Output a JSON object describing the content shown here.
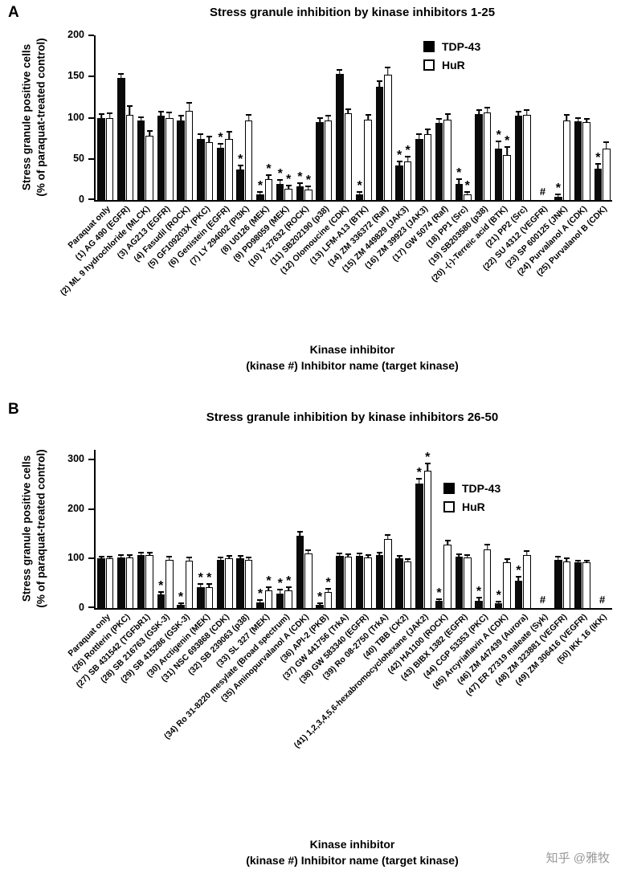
{
  "watermark": "知乎 @雅牧",
  "chart_data": [
    {
      "type": "bar",
      "panel": "A",
      "title": "Stress granule inhibition by kinase inhibitors 1-25",
      "ylabel_line1": "Stress granule positive cells",
      "ylabel_line2": "(% of paraquat-treated control)",
      "xlabel_line1": "Kinase inhibitor",
      "xlabel_line2": "(kinase #) Inhibitor name (target kinase)",
      "ylim": [
        0,
        200
      ],
      "yticks": [
        0,
        50,
        100,
        150,
        200
      ],
      "grid": false,
      "legend_position": "top-right-inside",
      "series": [
        {
          "name": "TDP-43",
          "fill": "#000000"
        },
        {
          "name": "HuR",
          "fill": "#ffffff"
        }
      ],
      "groups": [
        {
          "label": "Paraquat only",
          "values": [
            100,
            100
          ],
          "errors": [
            3,
            4
          ],
          "sig": [
            "",
            ""
          ]
        },
        {
          "label": "(1) AG 490 (EGFR)",
          "values": [
            148,
            103
          ],
          "errors": [
            4,
            10
          ],
          "sig": [
            "",
            ""
          ]
        },
        {
          "label": "(2) ML 9 hydrochloride (MLCK)",
          "values": [
            97,
            78
          ],
          "errors": [
            3,
            5
          ],
          "sig": [
            "",
            ""
          ]
        },
        {
          "label": "(3) AG213 (EGFR)",
          "values": [
            102,
            100
          ],
          "errors": [
            4,
            5
          ],
          "sig": [
            "",
            ""
          ]
        },
        {
          "label": "(4) Fasudil (ROCK)",
          "values": [
            97,
            108
          ],
          "errors": [
            4,
            9
          ],
          "sig": [
            "",
            ""
          ]
        },
        {
          "label": "(5) GF109203X (PKC)",
          "values": [
            74,
            70
          ],
          "errors": [
            5,
            6
          ],
          "sig": [
            "",
            ""
          ]
        },
        {
          "label": "(6) Genistein (EGFR)",
          "values": [
            63,
            74
          ],
          "errors": [
            4,
            8
          ],
          "sig": [
            "*",
            ""
          ]
        },
        {
          "label": "(7) LY 294002 (PI3K)",
          "values": [
            37,
            97
          ],
          "errors": [
            4,
            5
          ],
          "sig": [
            "*",
            ""
          ]
        },
        {
          "label": "(8) U0126 (MEK)",
          "values": [
            7,
            25
          ],
          "errors": [
            2,
            4
          ],
          "sig": [
            "*",
            "*"
          ]
        },
        {
          "label": "(9) PD98059 (MEK)",
          "values": [
            20,
            14
          ],
          "errors": [
            3,
            3
          ],
          "sig": [
            "*",
            "*"
          ]
        },
        {
          "label": "(10) Y-27632 (ROCK)",
          "values": [
            17,
            13
          ],
          "errors": [
            3,
            3
          ],
          "sig": [
            "*",
            "*"
          ]
        },
        {
          "label": "(11) SB202190 (p38)",
          "values": [
            95,
            97
          ],
          "errors": [
            4,
            4
          ],
          "sig": [
            "",
            ""
          ]
        },
        {
          "label": "(12) Olomoucine (CDK)",
          "values": [
            153,
            105
          ],
          "errors": [
            4,
            4
          ],
          "sig": [
            "",
            ""
          ]
        },
        {
          "label": "(13) LFM-A13 (BTK)",
          "values": [
            7,
            98
          ],
          "errors": [
            2,
            4
          ],
          "sig": [
            "*",
            ""
          ]
        },
        {
          "label": "(14) ZM 336372 (Raf)",
          "values": [
            138,
            152
          ],
          "errors": [
            5,
            8
          ],
          "sig": [
            "",
            ""
          ]
        },
        {
          "label": "(15) ZM 449829 (JAK3)",
          "values": [
            42,
            47
          ],
          "errors": [
            4,
            5
          ],
          "sig": [
            "*",
            "*"
          ]
        },
        {
          "label": "(16) ZM 39923 (JAK3)",
          "values": [
            74,
            80
          ],
          "errors": [
            5,
            5
          ],
          "sig": [
            "",
            ""
          ]
        },
        {
          "label": "(17) GW 5074 (Raf)",
          "values": [
            94,
            98
          ],
          "errors": [
            4,
            5
          ],
          "sig": [
            "",
            ""
          ]
        },
        {
          "label": "(18) PP1 (Src)",
          "values": [
            20,
            7
          ],
          "errors": [
            4,
            2
          ],
          "sig": [
            "*",
            "*"
          ]
        },
        {
          "label": "(19) SB203580 (p38)",
          "values": [
            104,
            106
          ],
          "errors": [
            4,
            5
          ],
          "sig": [
            "",
            ""
          ]
        },
        {
          "label": "(20) -(-)-Terreic acid (BTK)",
          "values": [
            62,
            55
          ],
          "errors": [
            8,
            8
          ],
          "sig": [
            "*",
            "*"
          ]
        },
        {
          "label": "(21) PP2 (Src)",
          "values": [
            102,
            103
          ],
          "errors": [
            4,
            5
          ],
          "sig": [
            "",
            ""
          ]
        },
        {
          "label": "(22) SU 4312 (VEGFR)",
          "na": "#"
        },
        {
          "label": "(23) SP 600125 (JNK)",
          "values": [
            4,
            97
          ],
          "errors": [
            2,
            5
          ],
          "sig": [
            "*",
            ""
          ]
        },
        {
          "label": "(24) Purvalanol A (CDK)",
          "values": [
            96,
            95
          ],
          "errors": [
            3,
            3
          ],
          "sig": [
            "",
            ""
          ]
        },
        {
          "label": "(25) Purvalanol B (CDK)",
          "values": [
            38,
            62
          ],
          "errors": [
            5,
            7
          ],
          "sig": [
            "*",
            ""
          ]
        }
      ]
    },
    {
      "type": "bar",
      "panel": "B",
      "title": "Stress granule inhibition by kinase inhibitors 26-50",
      "ylabel_line1": "Stress granule positive cells",
      "ylabel_line2": "(% of paraquat-treated control)",
      "xlabel_line1": "Kinase inhibitor",
      "xlabel_line2": "(kinase #) Inhibitor name (target kinase)",
      "ylim": [
        0,
        320
      ],
      "yticks": [
        0,
        100,
        200,
        300
      ],
      "grid": false,
      "legend_position": "center-right-inside",
      "series": [
        {
          "name": "TDP-43",
          "fill": "#000000"
        },
        {
          "name": "HuR",
          "fill": "#ffffff"
        }
      ],
      "groups": [
        {
          "label": "Paraquat only",
          "values": [
            100,
            100
          ],
          "errors": [
            3,
            3
          ],
          "sig": [
            "",
            ""
          ]
        },
        {
          "label": "(26) Rottlerin (PKC)",
          "values": [
            102,
            102
          ],
          "errors": [
            3,
            4
          ],
          "sig": [
            "",
            ""
          ]
        },
        {
          "label": "(27) SB 431542 (TGFbR1)",
          "values": [
            108,
            107
          ],
          "errors": [
            3,
            3
          ],
          "sig": [
            "",
            ""
          ]
        },
        {
          "label": "(28) SB 216763 (GSK-3)",
          "values": [
            27,
            98
          ],
          "errors": [
            4,
            5
          ],
          "sig": [
            "*",
            ""
          ]
        },
        {
          "label": "(29) SB 415286 (GSK-3)",
          "values": [
            6,
            96
          ],
          "errors": [
            2,
            5
          ],
          "sig": [
            "*",
            ""
          ]
        },
        {
          "label": "(30) Arctigenin (MEK)",
          "values": [
            42,
            42
          ],
          "errors": [
            5,
            5
          ],
          "sig": [
            "*",
            "*"
          ]
        },
        {
          "label": "(31) NSC 693868 (CDK)",
          "values": [
            97,
            100
          ],
          "errors": [
            4,
            4
          ],
          "sig": [
            "",
            ""
          ]
        },
        {
          "label": "(32) SB 239063 (p38)",
          "values": [
            100,
            97
          ],
          "errors": [
            4,
            4
          ],
          "sig": [
            "",
            ""
          ]
        },
        {
          "label": "(33) SL 327 (MEK)",
          "values": [
            12,
            35
          ],
          "errors": [
            3,
            5
          ],
          "sig": [
            "*",
            "*"
          ]
        },
        {
          "label": "(34) Ro 31-8220 mesylate (Broad spectrum)",
          "values": [
            30,
            35
          ],
          "errors": [
            5,
            5
          ],
          "sig": [
            "*",
            "*"
          ]
        },
        {
          "label": "(35) Aminopurvalanol A (CDK)",
          "values": [
            147,
            110
          ],
          "errors": [
            6,
            5
          ],
          "sig": [
            "",
            ""
          ]
        },
        {
          "label": "(36) API-2 (PKB)",
          "values": [
            6,
            32
          ],
          "errors": [
            2,
            5
          ],
          "sig": [
            "*",
            "*"
          ]
        },
        {
          "label": "(37) GW 441756 (TrkA)",
          "values": [
            105,
            104
          ],
          "errors": [
            4,
            4
          ],
          "sig": [
            "",
            ""
          ]
        },
        {
          "label": "(38) GW 583340 (EGFR)",
          "values": [
            105,
            102
          ],
          "errors": [
            4,
            4
          ],
          "sig": [
            "",
            ""
          ]
        },
        {
          "label": "(39) Ro 08-2750 (TrkA)",
          "values": [
            107,
            140
          ],
          "errors": [
            4,
            7
          ],
          "sig": [
            "",
            ""
          ]
        },
        {
          "label": "(40) TBB (CK2)",
          "values": [
            100,
            94
          ],
          "errors": [
            4,
            4
          ],
          "sig": [
            "",
            ""
          ]
        },
        {
          "label": "(41) 1,2,3,4,5,6-hexabromocyclohexane (JAK2)",
          "values": [
            252,
            278
          ],
          "errors": [
            8,
            12
          ],
          "sig": [
            "*",
            "*"
          ]
        },
        {
          "label": "(42) HA1100 (ROCK)",
          "values": [
            14,
            128
          ],
          "errors": [
            3,
            7
          ],
          "sig": [
            "*",
            ""
          ]
        },
        {
          "label": "(43) BIBX 1382 (EGFR)",
          "values": [
            104,
            102
          ],
          "errors": [
            4,
            4
          ],
          "sig": [
            "",
            ""
          ]
        },
        {
          "label": "(44) CGP 53353 (PKC)",
          "values": [
            15,
            119
          ],
          "errors": [
            4,
            8
          ],
          "sig": [
            "*",
            ""
          ]
        },
        {
          "label": "(45) Arcyriaflavin A (CDK)",
          "values": [
            9,
            93
          ],
          "errors": [
            3,
            5
          ],
          "sig": [
            "*",
            ""
          ]
        },
        {
          "label": "(46) ZM 447439 (Aurora)",
          "values": [
            56,
            107
          ],
          "errors": [
            6,
            6
          ],
          "sig": [
            "*",
            ""
          ]
        },
        {
          "label": "(47) ER 27319 maleate (Syk)",
          "na": "#"
        },
        {
          "label": "(48) ZM 323881 (VEGFR)",
          "values": [
            98,
            95
          ],
          "errors": [
            4,
            4
          ],
          "sig": [
            "",
            ""
          ]
        },
        {
          "label": "(49) ZM 306416 (VEGFR)",
          "values": [
            92,
            92
          ],
          "errors": [
            3,
            3
          ],
          "sig": [
            "",
            ""
          ]
        },
        {
          "label": "(50) IKK 16 (IKK)",
          "na": "#"
        }
      ]
    }
  ]
}
